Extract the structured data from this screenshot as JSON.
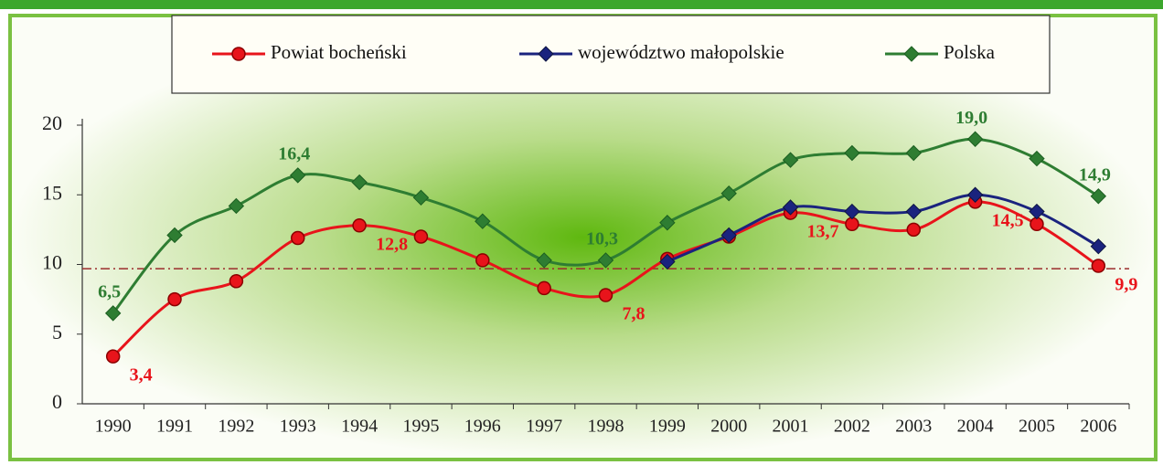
{
  "chart_data": {
    "type": "line",
    "categories": [
      "1990",
      "1991",
      "1992",
      "1993",
      "1994",
      "1995",
      "1996",
      "1997",
      "1998",
      "1999",
      "2000",
      "2001",
      "2002",
      "2003",
      "2004",
      "2005",
      "2006"
    ],
    "series": [
      {
        "name": "Powiat bocheński",
        "color": "#e8141b",
        "values": [
          3.4,
          7.5,
          8.8,
          11.9,
          12.8,
          12.0,
          10.3,
          8.3,
          7.8,
          10.4,
          12.0,
          13.7,
          12.9,
          12.5,
          14.5,
          12.9,
          9.9
        ],
        "value_labels": [
          "3,4",
          null,
          null,
          null,
          "12,8",
          null,
          null,
          null,
          "7,8",
          null,
          null,
          "13,7",
          null,
          null,
          "14,5",
          null,
          "9,9"
        ]
      },
      {
        "name": "województwo małopolskie",
        "color": "#1a237e",
        "values": [
          null,
          null,
          null,
          null,
          null,
          null,
          null,
          null,
          null,
          10.2,
          12.1,
          14.1,
          13.8,
          13.8,
          15.0,
          13.8,
          11.3
        ]
      },
      {
        "name": "Polska",
        "color": "#2e7d32",
        "values": [
          6.5,
          12.1,
          14.2,
          16.4,
          15.9,
          14.8,
          13.1,
          10.3,
          10.3,
          13.0,
          15.1,
          17.5,
          18.0,
          18.0,
          19.0,
          17.6,
          14.9
        ],
        "value_labels": [
          "6,5",
          null,
          null,
          "16,4",
          null,
          null,
          null,
          null,
          "10,3",
          null,
          null,
          null,
          null,
          null,
          "19,0",
          null,
          "14,9"
        ]
      }
    ],
    "ylim": [
      0,
      20
    ],
    "yticks": [
      0,
      5,
      10,
      15,
      20
    ],
    "reference_line": 9.7,
    "legend": "top"
  }
}
